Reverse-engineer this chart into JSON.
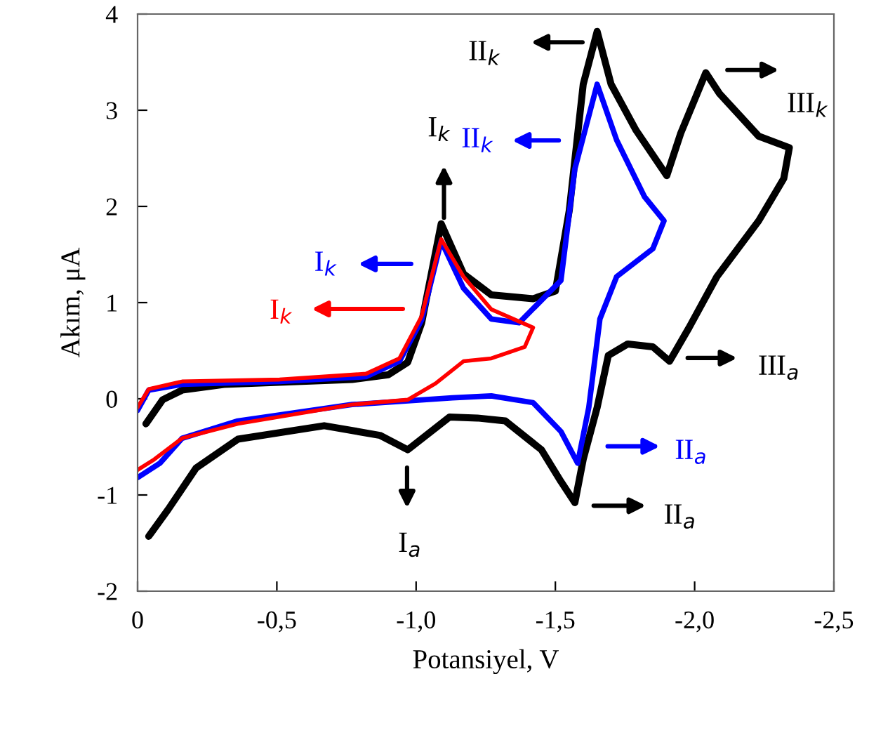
{
  "chart_data": {
    "type": "line",
    "xlabel": "Potansiyel, V",
    "ylabel": "Akım, μA",
    "xlim": [
      0,
      -2.5
    ],
    "ylim": [
      -2,
      4
    ],
    "xticks": [
      0,
      {
        "value": -0.5,
        "label": "-0,5"
      },
      {
        "value": -1.0,
        "label": "-1,0"
      },
      {
        "value": -1.5,
        "label": "-1,5"
      },
      {
        "value": -2.0,
        "label": "-2,0"
      },
      {
        "value": -2.5,
        "label": "-2,5"
      }
    ],
    "yticks": [
      -2,
      -1,
      0,
      1,
      2,
      3,
      4
    ],
    "grid": false,
    "marker": "none",
    "line_style": "solid",
    "series": [
      {
        "color": "#000000",
        "x": [
          -0.03,
          -0.09,
          -0.16,
          -0.31,
          -0.77,
          -0.9,
          -0.97,
          -1.02,
          -1.09,
          -1.17,
          -1.27,
          -1.42,
          -1.5,
          -1.55,
          -1.6,
          -1.65,
          -1.7,
          -1.79,
          -1.9,
          -1.95,
          -2.04,
          -2.09,
          -2.23,
          -2.34,
          -2.32,
          -2.23,
          -2.08,
          -1.98,
          -1.91,
          -1.85,
          -1.76,
          -1.69,
          -1.65,
          -1.6,
          -1.57,
          -1.52,
          -1.45,
          -1.32,
          -1.22,
          -1.12,
          -0.97,
          -0.87,
          -0.67,
          -0.36,
          -0.21,
          -0.11,
          -0.04
        ],
        "values": [
          -0.26,
          -0.01,
          0.09,
          0.15,
          0.2,
          0.25,
          0.38,
          0.79,
          1.82,
          1.3,
          1.08,
          1.04,
          1.12,
          1.96,
          3.27,
          3.82,
          3.27,
          2.79,
          2.32,
          2.76,
          3.39,
          3.17,
          2.73,
          2.61,
          2.29,
          1.85,
          1.27,
          0.74,
          0.39,
          0.54,
          0.57,
          0.45,
          -0.09,
          -0.63,
          -1.08,
          -0.86,
          -0.53,
          -0.23,
          -0.2,
          -0.19,
          -0.53,
          -0.38,
          -0.28,
          -0.42,
          -0.72,
          -1.15,
          -1.43
        ]
      },
      {
        "color": "#0000ff",
        "x": [
          0,
          -0.04,
          -0.16,
          -0.51,
          -0.82,
          -0.94,
          -1.02,
          -1.09,
          -1.17,
          -1.27,
          -1.37,
          -1.52,
          -1.57,
          -1.65,
          -1.72,
          -1.82,
          -1.89,
          -1.85,
          -1.72,
          -1.66,
          -1.62,
          -1.58,
          -1.52,
          -1.42,
          -1.27,
          -1.13,
          -0.77,
          -0.36,
          -0.16,
          -0.08,
          0
        ],
        "values": [
          -0.12,
          0.09,
          0.15,
          0.18,
          0.23,
          0.39,
          0.82,
          1.64,
          1.15,
          0.83,
          0.79,
          1.23,
          2.39,
          3.27,
          2.69,
          2.1,
          1.85,
          1.56,
          1.27,
          0.83,
          -0.09,
          -0.67,
          -0.34,
          -0.04,
          0.03,
          0.01,
          -0.06,
          -0.23,
          -0.41,
          -0.67,
          -0.82
        ]
      },
      {
        "color": "#ff0000",
        "x": [
          0,
          -0.04,
          -0.16,
          -0.51,
          -0.82,
          -0.94,
          -1.02,
          -1.09,
          -1.17,
          -1.27,
          -1.42,
          -1.39,
          -1.27,
          -1.17,
          -1.07,
          -0.97,
          -0.77,
          -0.36,
          -0.16,
          -0.06,
          0
        ],
        "values": [
          -0.09,
          0.1,
          0.18,
          0.2,
          0.26,
          0.42,
          0.86,
          1.66,
          1.27,
          0.93,
          0.74,
          0.54,
          0.42,
          0.39,
          0.16,
          -0.01,
          -0.06,
          -0.26,
          -0.41,
          -0.63,
          -0.74
        ]
      }
    ],
    "annotations": [
      "II$_{k}$",
      "III$_{k}$",
      "I$_{k}$",
      "II$_{k}$",
      "I$_{k}$",
      "I$_{k}$",
      "III$_{a}$",
      "II$_{a}$",
      "II$_{a}$",
      "I$_{a}$"
    ]
  }
}
